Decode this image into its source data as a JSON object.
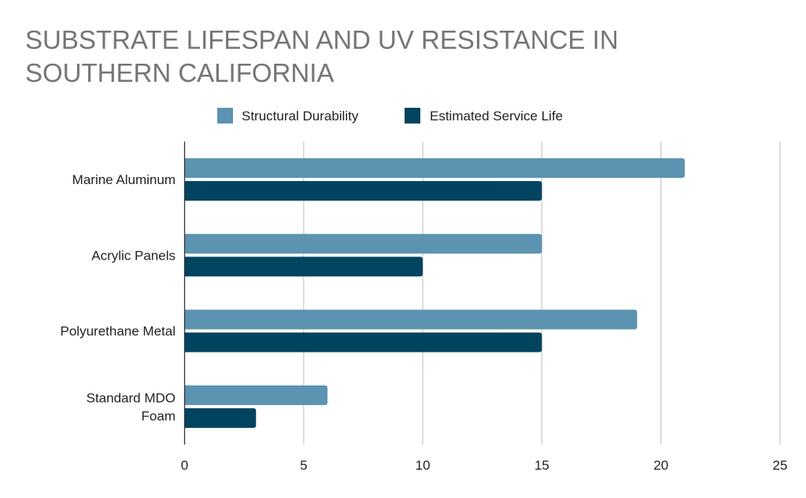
{
  "chart_data": {
    "type": "bar",
    "orientation": "horizontal",
    "title": "SUBSTRATE LIFESPAN AND UV RESISTANCE IN SOUTHERN CALIFORNIA",
    "categories": [
      [
        "Marine Aluminum"
      ],
      [
        "Acrylic Panels"
      ],
      [
        "Polyurethane Metal"
      ],
      [
        "Standard MDO",
        "Foam"
      ]
    ],
    "series": [
      {
        "name": "Structural Durability",
        "values": [
          21,
          15,
          19,
          6
        ],
        "color": "#5b93b0"
      },
      {
        "name": "Estimated Service Life",
        "values": [
          15,
          10,
          15,
          3
        ],
        "color": "#01445f"
      }
    ],
    "xlim": [
      0,
      25
    ],
    "xticks": [
      "0",
      "5",
      "10",
      "15",
      "20",
      "25"
    ],
    "xlabel": "",
    "ylabel": "",
    "grid": true,
    "legend_position": "top"
  }
}
